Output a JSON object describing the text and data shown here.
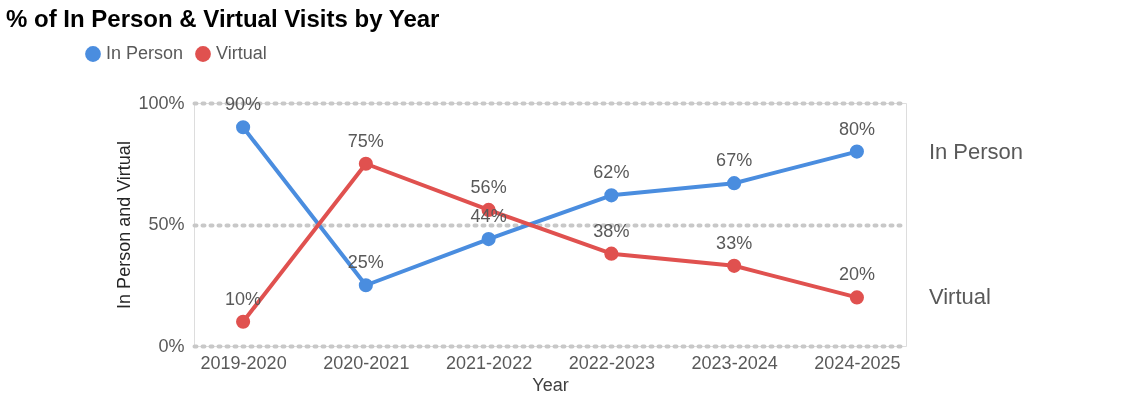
{
  "chart_data": {
    "type": "line",
    "title": "% of In Person & Virtual Visits by Year",
    "xlabel": "Year",
    "ylabel": "In Person and Virtual",
    "categories": [
      "2019-2020",
      "2020-2021",
      "2021-2022",
      "2022-2023",
      "2023-2024",
      "2024-2025"
    ],
    "series": [
      {
        "name": "In Person",
        "color": "#4a8ddf",
        "values": [
          90,
          25,
          44,
          62,
          67,
          80
        ],
        "value_labels": [
          "90%",
          "25%",
          "44%",
          "62%",
          "67%",
          "80%"
        ]
      },
      {
        "name": "Virtual",
        "color": "#e0514f",
        "values": [
          10,
          75,
          56,
          38,
          33,
          20
        ],
        "value_labels": [
          "10%",
          "75%",
          "56%",
          "38%",
          "33%",
          "20%"
        ]
      }
    ],
    "ylim": [
      0,
      100
    ],
    "yticks": [
      {
        "value": 0,
        "label": "0%"
      },
      {
        "value": 50,
        "label": "50%"
      },
      {
        "value": 100,
        "label": "100%"
      }
    ],
    "grid": "y",
    "legend": "top left",
    "marker": "circle",
    "line_style": "solid"
  }
}
